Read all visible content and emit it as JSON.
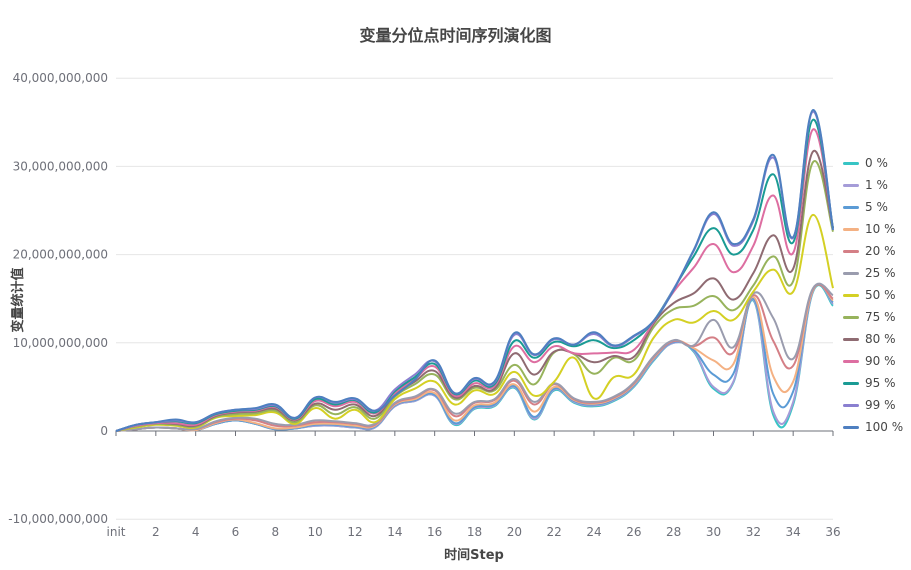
{
  "chart_data": {
    "type": "line",
    "title": "变量分位点时间序列演化图",
    "xlabel": "时间Step",
    "ylabel": "变量统计值",
    "ylim": [
      -10000000000,
      40000000000
    ],
    "y_ticks": [
      "-10,000,000,000",
      "0",
      "10,000,000,000",
      "20,000,000,000",
      "30,000,000,000",
      "40,000,000,000"
    ],
    "y_tick_values": [
      -10000000000,
      0,
      10000000000,
      20000000000,
      30000000000,
      40000000000
    ],
    "x_tick_labels": [
      "init",
      "2",
      "4",
      "6",
      "8",
      "10",
      "12",
      "14",
      "16",
      "18",
      "20",
      "22",
      "24",
      "26",
      "28",
      "30",
      "32",
      "34",
      "36"
    ],
    "x": [
      "init",
      "1",
      "2",
      "3",
      "4",
      "5",
      "6",
      "7",
      "8",
      "9",
      "10",
      "11",
      "12",
      "13",
      "14",
      "15",
      "16",
      "17",
      "18",
      "19",
      "20",
      "21",
      "22",
      "23",
      "24",
      "25",
      "26",
      "27",
      "28",
      "29",
      "30",
      "31",
      "32",
      "33",
      "34",
      "35",
      "36"
    ],
    "grid": true,
    "smooth": true,
    "legend_position": "right",
    "value_unit": "billions (1e9)",
    "series": [
      {
        "name": "0 %",
        "color": "#37c5c5",
        "values": [
          0,
          0.2,
          0.4,
          0.3,
          0.1,
          0.8,
          1.2,
          0.8,
          0.2,
          0.3,
          0.6,
          0.6,
          0.4,
          0.4,
          2.8,
          3.4,
          4.0,
          0.7,
          2.5,
          2.8,
          4.9,
          1.3,
          4.6,
          3.2,
          2.8,
          3.4,
          5.0,
          8.0,
          10.0,
          9.0,
          4.8,
          5.5,
          14.8,
          1.8,
          3.0,
          15.8,
          14.2
        ]
      },
      {
        "name": "1 %",
        "color": "#a59cd8",
        "values": [
          0,
          0.2,
          0.4,
          0.3,
          0.1,
          0.8,
          1.2,
          0.8,
          0.2,
          0.3,
          0.6,
          0.6,
          0.4,
          0.4,
          2.8,
          3.4,
          4.0,
          0.8,
          2.6,
          2.9,
          5.0,
          1.4,
          4.7,
          3.3,
          2.9,
          3.5,
          5.1,
          8.1,
          10.0,
          9.1,
          5.0,
          5.6,
          14.9,
          2.2,
          3.3,
          15.9,
          14.4
        ]
      },
      {
        "name": "5 %",
        "color": "#5b9bd5",
        "values": [
          0,
          0.2,
          0.4,
          0.3,
          0.1,
          0.8,
          1.2,
          0.8,
          0.2,
          0.3,
          0.7,
          0.7,
          0.5,
          0.5,
          2.9,
          3.5,
          4.1,
          0.9,
          2.7,
          3.0,
          5.1,
          1.6,
          4.8,
          3.4,
          3.0,
          3.6,
          5.2,
          8.2,
          10.1,
          9.2,
          6.4,
          6.5,
          15.0,
          4.2,
          4.5,
          16.0,
          14.6
        ]
      },
      {
        "name": "10 %",
        "color": "#f4b183",
        "values": [
          0,
          0.2,
          0.4,
          0.3,
          0.1,
          0.9,
          1.3,
          0.9,
          0.3,
          0.4,
          0.8,
          0.8,
          0.6,
          0.6,
          3.0,
          3.6,
          4.3,
          1.2,
          2.9,
          3.2,
          5.3,
          2.2,
          5.0,
          3.5,
          3.1,
          3.7,
          5.3,
          8.3,
          10.2,
          9.4,
          8.0,
          7.6,
          15.2,
          6.2,
          5.6,
          16.0,
          14.8
        ]
      },
      {
        "name": "20 %",
        "color": "#d47f86",
        "values": [
          0,
          0.2,
          0.4,
          0.3,
          0.2,
          1.0,
          1.4,
          1.2,
          0.6,
          0.6,
          1.0,
          1.0,
          0.8,
          0.7,
          3.1,
          3.8,
          4.6,
          1.7,
          3.2,
          3.5,
          5.7,
          3.0,
          5.3,
          3.6,
          3.2,
          3.8,
          5.4,
          8.4,
          10.2,
          9.6,
          10.6,
          8.9,
          15.4,
          10.2,
          7.4,
          16.1,
          15.0
        ]
      },
      {
        "name": "25 %",
        "color": "#9a9cae",
        "values": [
          0,
          0.2,
          0.4,
          0.3,
          0.2,
          1.1,
          1.5,
          1.4,
          0.8,
          0.7,
          1.2,
          1.1,
          0.9,
          0.8,
          3.2,
          3.9,
          4.7,
          2.0,
          3.3,
          3.6,
          5.9,
          3.3,
          5.4,
          3.7,
          3.3,
          3.9,
          5.5,
          8.5,
          10.3,
          9.7,
          12.6,
          9.5,
          15.6,
          12.8,
          8.2,
          16.2,
          15.4
        ]
      },
      {
        "name": "50 %",
        "color": "#d4d024",
        "values": [
          0,
          0.4,
          0.7,
          0.6,
          0.4,
          1.5,
          1.7,
          1.8,
          2.1,
          0.8,
          2.6,
          1.4,
          2.4,
          1.0,
          3.6,
          4.8,
          5.6,
          3.0,
          4.6,
          4.2,
          6.7,
          4.0,
          5.6,
          8.3,
          3.7,
          6.1,
          6.4,
          10.6,
          12.6,
          12.3,
          13.6,
          12.6,
          15.8,
          18.3,
          15.8,
          24.5,
          16.2
        ]
      },
      {
        "name": "75 %",
        "color": "#97b35c",
        "values": [
          0,
          0.5,
          0.8,
          0.7,
          0.5,
          1.6,
          1.9,
          2.0,
          2.3,
          1.0,
          2.9,
          1.9,
          2.7,
          1.4,
          3.9,
          5.3,
          6.4,
          3.6,
          4.9,
          4.6,
          7.5,
          5.3,
          8.9,
          8.7,
          6.5,
          8.3,
          8.0,
          11.8,
          13.8,
          14.2,
          15.3,
          13.7,
          16.5,
          19.8,
          17.0,
          30.5,
          22.6
        ]
      },
      {
        "name": "80 %",
        "color": "#8f6b72",
        "values": [
          0,
          0.6,
          0.9,
          0.8,
          0.6,
          1.7,
          2.1,
          2.2,
          2.5,
          1.2,
          3.1,
          2.4,
          3.0,
          1.7,
          4.1,
          5.6,
          6.8,
          3.8,
          5.1,
          4.8,
          8.8,
          6.4,
          9.0,
          8.8,
          7.8,
          8.5,
          8.4,
          12.2,
          14.5,
          15.6,
          17.3,
          14.9,
          17.9,
          22.2,
          18.4,
          31.7,
          23.0
        ]
      },
      {
        "name": "90 %",
        "color": "#dd6ea1",
        "values": [
          0,
          0.6,
          0.9,
          0.9,
          0.7,
          1.8,
          2.2,
          2.3,
          2.7,
          1.3,
          3.4,
          2.8,
          3.3,
          2.0,
          4.3,
          5.9,
          7.3,
          4.0,
          5.4,
          5.1,
          9.6,
          7.8,
          9.6,
          8.8,
          8.8,
          8.9,
          9.2,
          12.4,
          15.8,
          18.5,
          21.2,
          18.0,
          21.0,
          26.7,
          20.2,
          34.2,
          23.0
        ]
      },
      {
        "name": "95 %",
        "color": "#1a9b94",
        "values": [
          0,
          0.7,
          1.0,
          1.1,
          0.9,
          1.9,
          2.3,
          2.4,
          2.8,
          1.4,
          3.6,
          3.0,
          3.5,
          2.1,
          4.5,
          6.1,
          7.6,
          4.2,
          5.7,
          5.3,
          10.2,
          8.3,
          10.1,
          9.6,
          10.3,
          9.4,
          10.3,
          12.5,
          16.1,
          19.8,
          23.0,
          20.0,
          22.8,
          29.1,
          21.4,
          35.3,
          23.0
        ]
      },
      {
        "name": "99 %",
        "color": "#8a7fd0",
        "values": [
          0,
          0.7,
          1.0,
          1.2,
          1.0,
          2.0,
          2.4,
          2.5,
          2.9,
          1.5,
          3.8,
          3.2,
          3.6,
          2.3,
          4.7,
          6.4,
          7.9,
          4.3,
          5.9,
          5.5,
          10.9,
          8.6,
          10.4,
          9.8,
          11.0,
          9.6,
          10.7,
          12.5,
          16.1,
          20.4,
          24.6,
          21.0,
          23.8,
          31.0,
          21.9,
          36.2,
          22.8
        ]
      },
      {
        "name": "100 %",
        "color": "#4e7fc0",
        "values": [
          0,
          0.7,
          1.0,
          1.3,
          1.0,
          2.0,
          2.4,
          2.6,
          3.0,
          1.5,
          3.8,
          3.3,
          3.7,
          2.3,
          4.0,
          5.8,
          8.0,
          4.3,
          6.0,
          5.6,
          11.1,
          8.7,
          10.5,
          9.8,
          11.2,
          9.7,
          10.8,
          12.5,
          16.0,
          20.5,
          24.8,
          21.2,
          24.0,
          31.3,
          22.0,
          36.4,
          22.8
        ]
      }
    ]
  },
  "ui": {
    "title": "变量分位点时间序列演化图",
    "xlabel": "时间Step",
    "ylabel": "变量统计值"
  }
}
